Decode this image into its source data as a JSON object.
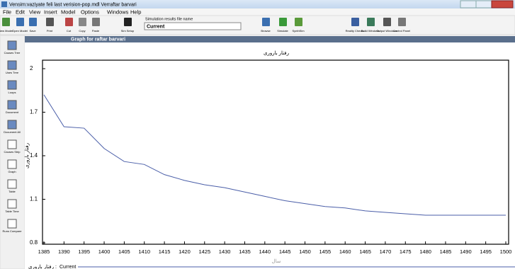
{
  "window_title": "Vensim:vaziyate feli last verision-pop.mdl Verraftar barvari",
  "menu": [
    "File",
    "Edit",
    "View",
    "Insert",
    "Model",
    "Options",
    "Windows",
    "Help"
  ],
  "toolbar": [
    "New Model",
    "Open Model",
    "Save",
    "Print",
    "Cut",
    "Copy",
    "Paste",
    "Sim Setup",
    "Browse",
    "Simulate",
    "SynthSim",
    "Reality Checks",
    "Build Windows",
    "Output Windows",
    "Control Panel"
  ],
  "sim_file_label": "Simulation results file name",
  "sim_file_value": "Current",
  "tools": [
    "Causes Tree",
    "Uses Tree",
    "Loops",
    "Document",
    "Document All",
    "Causes Strip",
    "Graph",
    "Table",
    "Table Time",
    "Runs Compare"
  ],
  "graph_window_title": "Graph for raftar barvari",
  "chart_data": {
    "type": "line",
    "title": "رفتار باروری",
    "y_label": "رفتار باروری",
    "x_label": "سال",
    "legend_variable": "رفتار باروری",
    "x": [
      1385,
      1390,
      1395,
      1400,
      1405,
      1410,
      1415,
      1420,
      1425,
      1430,
      1435,
      1440,
      1445,
      1450,
      1455,
      1460,
      1465,
      1470,
      1475,
      1480,
      1485,
      1490,
      1495,
      1500
    ],
    "series": [
      {
        "name": "Current",
        "color": "#4a5ea8",
        "values": [
          1.82,
          1.6,
          1.59,
          1.45,
          1.36,
          1.34,
          1.27,
          1.23,
          1.2,
          1.18,
          1.15,
          1.12,
          1.09,
          1.07,
          1.05,
          1.04,
          1.02,
          1.01,
          1.0,
          0.99,
          0.99,
          0.99,
          0.99,
          0.99
        ]
      }
    ],
    "xlim": [
      1385,
      1500
    ],
    "ylim": [
      0.8,
      2
    ],
    "xticks": [
      1385,
      1390,
      1395,
      1400,
      1405,
      1410,
      1415,
      1420,
      1425,
      1430,
      1435,
      1440,
      1445,
      1450,
      1455,
      1460,
      1465,
      1470,
      1475,
      1480,
      1485,
      1490,
      1495,
      1500
    ],
    "yticks": [
      2,
      1.7,
      1.4,
      1.1,
      0.8
    ]
  }
}
